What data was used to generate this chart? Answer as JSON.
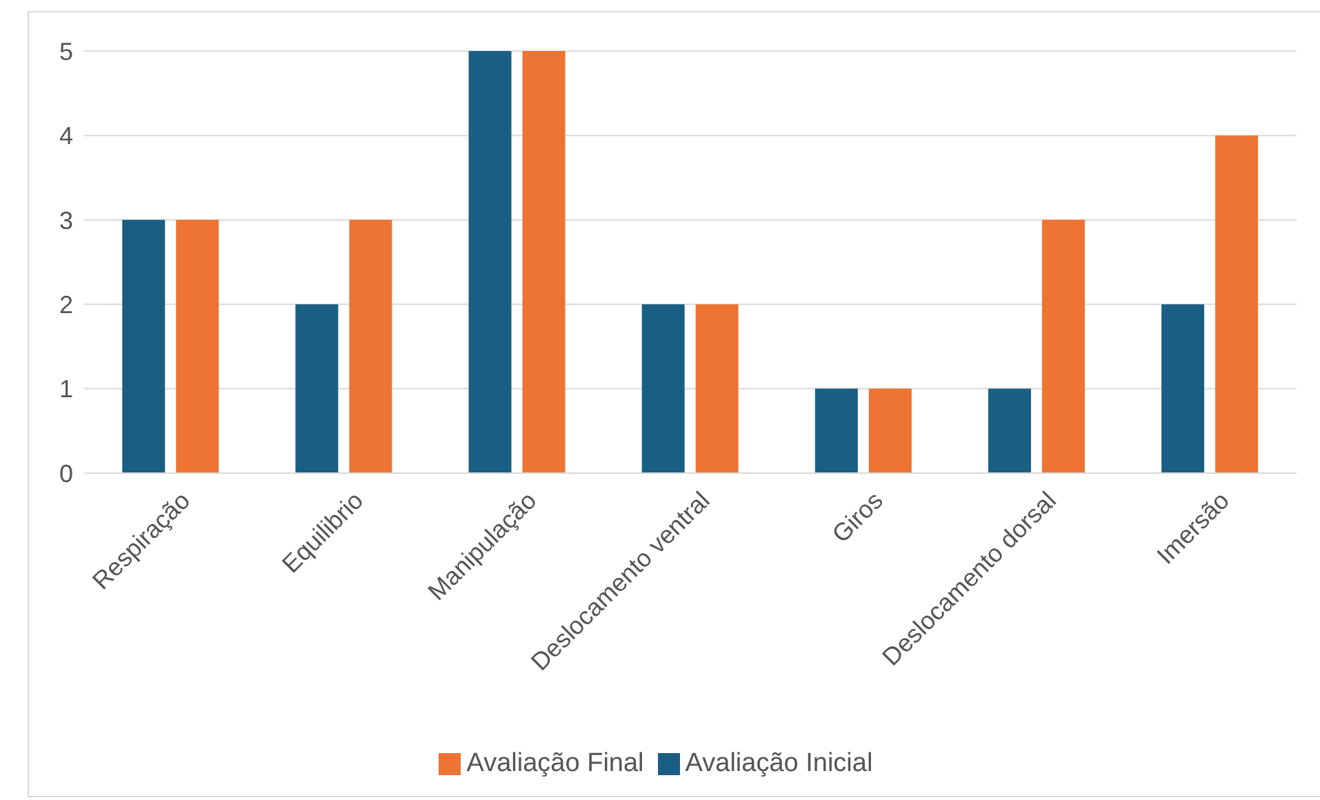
{
  "chart_data": {
    "type": "bar",
    "categories": [
      "Respiração",
      "Equilibrio",
      "Manipulação",
      "Deslocamento ventral",
      "Giros",
      "Deslocamento dorsal",
      "Imersão"
    ],
    "series": [
      {
        "name": "Avaliação Inicial",
        "color": "#1a5f83",
        "values": [
          3,
          2,
          5,
          2,
          1,
          1,
          2
        ]
      },
      {
        "name": "Avaliação Final",
        "color": "#ed7433",
        "values": [
          3,
          3,
          5,
          2,
          1,
          3,
          4
        ]
      }
    ],
    "ylim": [
      0,
      5
    ],
    "yticks": [
      0,
      1,
      2,
      3,
      4,
      5
    ],
    "grid": "y",
    "legend": "bottom"
  }
}
